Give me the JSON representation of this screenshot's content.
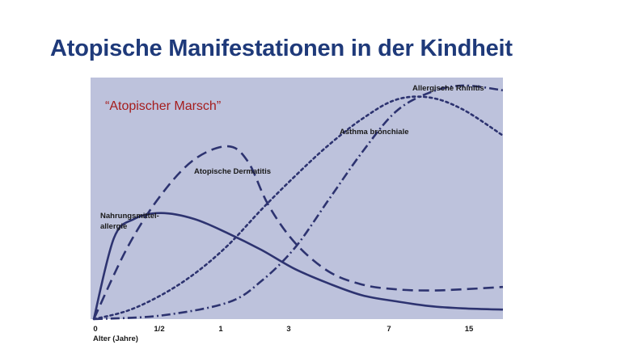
{
  "slide": {
    "title": "Atopische Manifestationen in der Kindheit"
  },
  "chart_data": {
    "type": "line",
    "subtitle": "“Atopischer Marsch”",
    "xlabel": "Alter (Jahre)",
    "x_ticks": [
      "0",
      "1/2",
      "1",
      "3",
      "7",
      "15"
    ],
    "x_tick_positions": [
      0,
      1,
      2,
      3,
      4,
      5
    ],
    "xlim": [
      0,
      6.1
    ],
    "ylim": [
      0,
      1
    ],
    "grid": false,
    "legend": "none",
    "background_color": "#bdc2dc",
    "line_color": "#2d3370",
    "series": [
      {
        "name": "Nahrungsmittel-allergie",
        "label_lines": [
          "Nahrungsmittel-",
          "allergie"
        ],
        "dash": "solid",
        "x": [
          0,
          0.3,
          0.6,
          1.0,
          1.5,
          2.0,
          2.5,
          3.0,
          3.5,
          4.0,
          4.5,
          5.0,
          5.5,
          6.1
        ],
        "y": [
          0,
          0.34,
          0.42,
          0.445,
          0.42,
          0.36,
          0.29,
          0.21,
          0.15,
          0.1,
          0.075,
          0.055,
          0.045,
          0.04
        ]
      },
      {
        "name": "Atopische Dermatitis",
        "label_lines": [
          "Atopische Dermatitis"
        ],
        "dash": "dashed",
        "x": [
          0,
          0.5,
          1.0,
          1.5,
          2.0,
          2.3,
          2.6,
          3.0,
          3.5,
          4.0,
          4.5,
          5.0,
          5.5,
          6.1
        ],
        "y": [
          0,
          0.3,
          0.52,
          0.67,
          0.725,
          0.66,
          0.48,
          0.32,
          0.2,
          0.145,
          0.125,
          0.12,
          0.125,
          0.135
        ]
      },
      {
        "name": "Asthma bronchiale",
        "label_lines": [
          "Asthma bronchiale"
        ],
        "dash": "dotted",
        "x": [
          0,
          0.5,
          1.0,
          1.5,
          2.0,
          2.5,
          3.0,
          3.5,
          4.0,
          4.5,
          5.0,
          5.5,
          6.1
        ],
        "y": [
          0,
          0.035,
          0.1,
          0.19,
          0.31,
          0.46,
          0.6,
          0.73,
          0.84,
          0.92,
          0.93,
          0.88,
          0.77
        ]
      },
      {
        "name": "Allergische Rhinitis",
        "label_lines": [
          "Allergische Rhinitis"
        ],
        "dash": "dashdot",
        "x": [
          0,
          1.0,
          2.0,
          2.5,
          3.0,
          3.5,
          4.0,
          4.5,
          5.0,
          5.5,
          6.1
        ],
        "y": [
          0,
          0.015,
          0.07,
          0.16,
          0.3,
          0.5,
          0.7,
          0.87,
          0.95,
          0.98,
          0.96
        ]
      }
    ]
  }
}
